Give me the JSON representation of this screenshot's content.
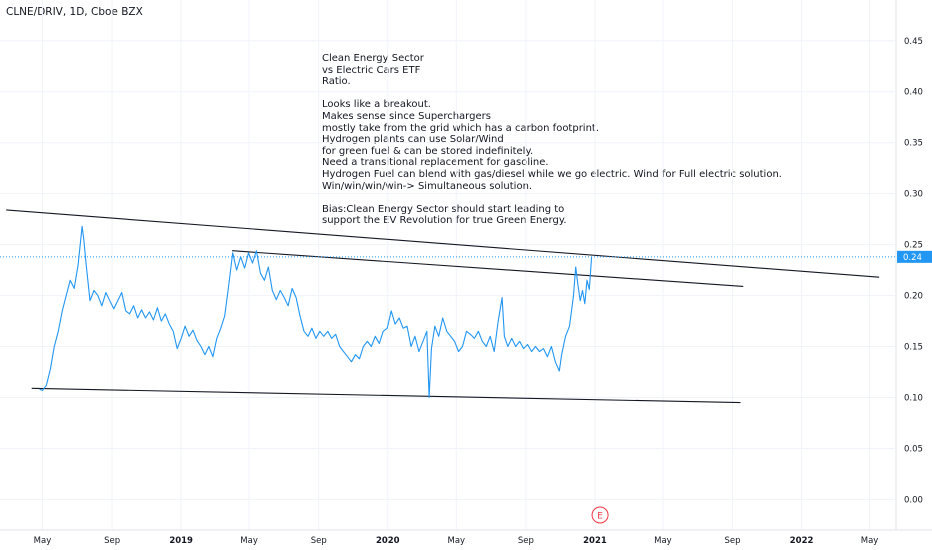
{
  "symbol_title": "CLNE/DRIV, 1D, Cboe BZX",
  "note_lines": [
    "Clean Energy Sector",
    "vs Electric Cars ETF",
    "Ratio.",
    "",
    "Looks like a breakout.",
    "Makes sense since Superchargers",
    "mostly take from the grid which has a carbon footprint.",
    "Hydrogen plants can use Solar/Wind",
    "for green fuel & can be stored indefinitely.",
    "Need a transitional replacement for gasoline.",
    "Hydrogen Fuel can blend with gas/diesel while we go electric. Wind for Full electric solution.",
    "Win/win/win/win-> Simultaneous solution.",
    "",
    "Bias:Clean Energy Sector should start leading to",
    "support the EV Revolution for true Green Energy."
  ],
  "earnings_badge": "E",
  "colors": {
    "series": "#2196f3",
    "price_tag": "#2196f3",
    "trendline": "#131722",
    "grid": "#f0f3fa",
    "badge": "#f23645"
  },
  "chart_data": {
    "type": "line",
    "x_ticks": [
      {
        "label": "May",
        "bold": false
      },
      {
        "label": "Sep",
        "bold": false
      },
      {
        "label": "2019",
        "bold": true
      },
      {
        "label": "May",
        "bold": false
      },
      {
        "label": "Sep",
        "bold": false
      },
      {
        "label": "2020",
        "bold": true
      },
      {
        "label": "May",
        "bold": false
      },
      {
        "label": "Sep",
        "bold": false
      },
      {
        "label": "2021",
        "bold": true
      },
      {
        "label": "May",
        "bold": false
      },
      {
        "label": "Sep",
        "bold": false
      },
      {
        "label": "2022",
        "bold": true
      },
      {
        "label": "May",
        "bold": false
      }
    ],
    "y_ticks": [
      "0.00",
      "0.05",
      "0.10",
      "0.15",
      "0.20",
      "0.25",
      "0.30",
      "0.35",
      "0.40",
      "0.45"
    ],
    "ylim": [
      -0.03,
      0.49
    ],
    "xlim": [
      "2018-02-15",
      "2022-06-15"
    ],
    "last_value_label": "0.24",
    "last_value": 0.238,
    "series": [
      {
        "points": [
          [
            "2018-04-26",
            0.108
          ],
          [
            "2018-05-01",
            0.107
          ],
          [
            "2018-05-08",
            0.112
          ],
          [
            "2018-05-15",
            0.128
          ],
          [
            "2018-05-22",
            0.15
          ],
          [
            "2018-05-29",
            0.165
          ],
          [
            "2018-06-05",
            0.185
          ],
          [
            "2018-06-12",
            0.2
          ],
          [
            "2018-06-19",
            0.215
          ],
          [
            "2018-06-26",
            0.207
          ],
          [
            "2018-07-03",
            0.23
          ],
          [
            "2018-07-10",
            0.268
          ],
          [
            "2018-07-13",
            0.255
          ],
          [
            "2018-07-17",
            0.232
          ],
          [
            "2018-07-24",
            0.195
          ],
          [
            "2018-07-31",
            0.205
          ],
          [
            "2018-08-07",
            0.2
          ],
          [
            "2018-08-14",
            0.19
          ],
          [
            "2018-08-21",
            0.203
          ],
          [
            "2018-08-28",
            0.195
          ],
          [
            "2018-09-04",
            0.187
          ],
          [
            "2018-09-11",
            0.195
          ],
          [
            "2018-09-18",
            0.203
          ],
          [
            "2018-09-25",
            0.185
          ],
          [
            "2018-10-02",
            0.182
          ],
          [
            "2018-10-09",
            0.19
          ],
          [
            "2018-10-16",
            0.178
          ],
          [
            "2018-10-23",
            0.186
          ],
          [
            "2018-10-30",
            0.178
          ],
          [
            "2018-11-06",
            0.184
          ],
          [
            "2018-11-13",
            0.176
          ],
          [
            "2018-11-20",
            0.188
          ],
          [
            "2018-11-27",
            0.175
          ],
          [
            "2018-12-04",
            0.182
          ],
          [
            "2018-12-11",
            0.172
          ],
          [
            "2018-12-18",
            0.165
          ],
          [
            "2018-12-25",
            0.148
          ],
          [
            "2019-01-01",
            0.158
          ],
          [
            "2019-01-08",
            0.17
          ],
          [
            "2019-01-15",
            0.16
          ],
          [
            "2019-01-22",
            0.166
          ],
          [
            "2019-01-29",
            0.156
          ],
          [
            "2019-02-05",
            0.15
          ],
          [
            "2019-02-12",
            0.142
          ],
          [
            "2019-02-19",
            0.15
          ],
          [
            "2019-02-26",
            0.14
          ],
          [
            "2019-03-05",
            0.158
          ],
          [
            "2019-03-12",
            0.168
          ],
          [
            "2019-03-19",
            0.18
          ],
          [
            "2019-03-26",
            0.21
          ],
          [
            "2019-04-02",
            0.242
          ],
          [
            "2019-04-09",
            0.225
          ],
          [
            "2019-04-16",
            0.238
          ],
          [
            "2019-04-23",
            0.227
          ],
          [
            "2019-04-30",
            0.242
          ],
          [
            "2019-05-07",
            0.232
          ],
          [
            "2019-05-14",
            0.244
          ],
          [
            "2019-05-21",
            0.222
          ],
          [
            "2019-05-28",
            0.215
          ],
          [
            "2019-06-04",
            0.228
          ],
          [
            "2019-06-11",
            0.205
          ],
          [
            "2019-06-18",
            0.196
          ],
          [
            "2019-06-25",
            0.205
          ],
          [
            "2019-07-02",
            0.198
          ],
          [
            "2019-07-09",
            0.19
          ],
          [
            "2019-07-16",
            0.207
          ],
          [
            "2019-07-23",
            0.198
          ],
          [
            "2019-07-30",
            0.18
          ],
          [
            "2019-08-06",
            0.165
          ],
          [
            "2019-08-13",
            0.16
          ],
          [
            "2019-08-20",
            0.168
          ],
          [
            "2019-08-27",
            0.158
          ],
          [
            "2019-09-03",
            0.165
          ],
          [
            "2019-09-10",
            0.16
          ],
          [
            "2019-09-17",
            0.165
          ],
          [
            "2019-09-24",
            0.158
          ],
          [
            "2019-10-01",
            0.162
          ],
          [
            "2019-10-08",
            0.15
          ],
          [
            "2019-10-15",
            0.145
          ],
          [
            "2019-10-22",
            0.14
          ],
          [
            "2019-10-29",
            0.135
          ],
          [
            "2019-11-05",
            0.142
          ],
          [
            "2019-11-12",
            0.138
          ],
          [
            "2019-11-19",
            0.15
          ],
          [
            "2019-11-26",
            0.155
          ],
          [
            "2019-12-03",
            0.15
          ],
          [
            "2019-12-10",
            0.16
          ],
          [
            "2019-12-17",
            0.153
          ],
          [
            "2019-12-24",
            0.165
          ],
          [
            "2019-12-31",
            0.168
          ],
          [
            "2020-01-07",
            0.185
          ],
          [
            "2020-01-14",
            0.172
          ],
          [
            "2020-01-21",
            0.178
          ],
          [
            "2020-01-28",
            0.168
          ],
          [
            "2020-02-04",
            0.17
          ],
          [
            "2020-02-11",
            0.15
          ],
          [
            "2020-02-18",
            0.16
          ],
          [
            "2020-02-25",
            0.145
          ],
          [
            "2020-03-03",
            0.155
          ],
          [
            "2020-03-10",
            0.165
          ],
          [
            "2020-03-14",
            0.1
          ],
          [
            "2020-03-18",
            0.148
          ],
          [
            "2020-03-24",
            0.17
          ],
          [
            "2020-03-31",
            0.16
          ],
          [
            "2020-04-07",
            0.178
          ],
          [
            "2020-04-14",
            0.165
          ],
          [
            "2020-04-21",
            0.16
          ],
          [
            "2020-04-28",
            0.155
          ],
          [
            "2020-05-05",
            0.145
          ],
          [
            "2020-05-12",
            0.15
          ],
          [
            "2020-05-19",
            0.165
          ],
          [
            "2020-05-26",
            0.162
          ],
          [
            "2020-06-02",
            0.158
          ],
          [
            "2020-06-09",
            0.165
          ],
          [
            "2020-06-16",
            0.155
          ],
          [
            "2020-06-23",
            0.15
          ],
          [
            "2020-06-30",
            0.16
          ],
          [
            "2020-07-07",
            0.145
          ],
          [
            "2020-07-14",
            0.175
          ],
          [
            "2020-07-21",
            0.198
          ],
          [
            "2020-07-25",
            0.16
          ],
          [
            "2020-07-31",
            0.15
          ],
          [
            "2020-08-07",
            0.158
          ],
          [
            "2020-08-14",
            0.15
          ],
          [
            "2020-08-21",
            0.155
          ],
          [
            "2020-08-28",
            0.148
          ],
          [
            "2020-09-04",
            0.152
          ],
          [
            "2020-09-11",
            0.145
          ],
          [
            "2020-09-18",
            0.15
          ],
          [
            "2020-09-25",
            0.145
          ],
          [
            "2020-10-02",
            0.148
          ],
          [
            "2020-10-09",
            0.14
          ],
          [
            "2020-10-16",
            0.15
          ],
          [
            "2020-10-23",
            0.135
          ],
          [
            "2020-10-30",
            0.126
          ],
          [
            "2020-11-03",
            0.142
          ],
          [
            "2020-11-10",
            0.16
          ],
          [
            "2020-11-17",
            0.17
          ],
          [
            "2020-11-24",
            0.2
          ],
          [
            "2020-11-28",
            0.228
          ],
          [
            "2020-12-02",
            0.21
          ],
          [
            "2020-12-06",
            0.195
          ],
          [
            "2020-12-10",
            0.205
          ],
          [
            "2020-12-14",
            0.192
          ],
          [
            "2020-12-18",
            0.215
          ],
          [
            "2020-12-22",
            0.206
          ],
          [
            "2020-12-26",
            0.238
          ]
        ]
      }
    ],
    "trendlines": [
      {
        "from": [
          "2018-02-26",
          0.284
        ],
        "to": [
          "2022-05-18",
          0.218
        ]
      },
      {
        "from": [
          "2019-04-01",
          0.244
        ],
        "to": [
          "2021-09-20",
          0.209
        ]
      },
      {
        "from": [
          "2018-04-12",
          0.109
        ],
        "to": [
          "2021-09-15",
          0.095
        ]
      }
    ],
    "earnings_marker_date": "2021-01-10"
  }
}
